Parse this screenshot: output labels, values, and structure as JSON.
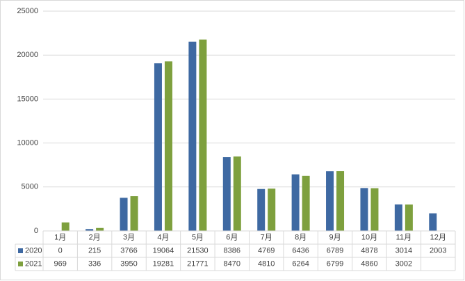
{
  "chart_data": {
    "type": "bar",
    "categories": [
      "1月",
      "2月",
      "3月",
      "4月",
      "5月",
      "6月",
      "7月",
      "8月",
      "9月",
      "10月",
      "11月",
      "12月"
    ],
    "series": [
      {
        "name": "2020",
        "color": "#3e69a2",
        "values": [
          0,
          215,
          3766,
          19064,
          21530,
          8386,
          4769,
          6436,
          6789,
          4878,
          3014,
          2003
        ]
      },
      {
        "name": "2021",
        "color": "#7ea03e",
        "values": [
          969,
          336,
          3950,
          19281,
          21771,
          8470,
          4810,
          6264,
          6799,
          4860,
          3002,
          null
        ]
      }
    ],
    "ylim": [
      0,
      25000
    ],
    "yticks": [
      0,
      5000,
      10000,
      15000,
      20000,
      25000
    ],
    "grid": true,
    "data_table": true
  }
}
